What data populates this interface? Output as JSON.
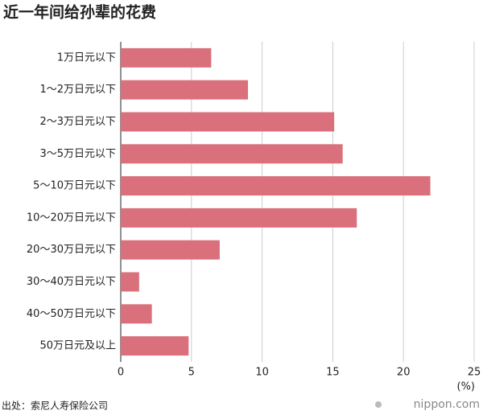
{
  "chart_data": {
    "type": "bar",
    "orientation": "horizontal",
    "title": "近一年间给孙辈的花费",
    "categories": [
      "1万日元以下",
      "1～2万日元以下",
      "2～3万日元以下",
      "3～5万日元以下",
      "5～10万日元以下",
      "10～20万日元以下",
      "20～30万日元以下",
      "30～40万日元以下",
      "40～50万日元以下",
      "50万日元及以上"
    ],
    "values": [
      6.4,
      9.0,
      15.1,
      15.7,
      21.9,
      16.7,
      7.0,
      1.3,
      2.2,
      4.8
    ],
    "color": "#d9707c",
    "xlim": [
      0,
      25
    ],
    "xticks": [
      0,
      5,
      10,
      15,
      20,
      25
    ],
    "grid": true,
    "unit_label": "(%)",
    "source": "出处：索尼人寿保险公司",
    "watermark": "nippon.com"
  }
}
